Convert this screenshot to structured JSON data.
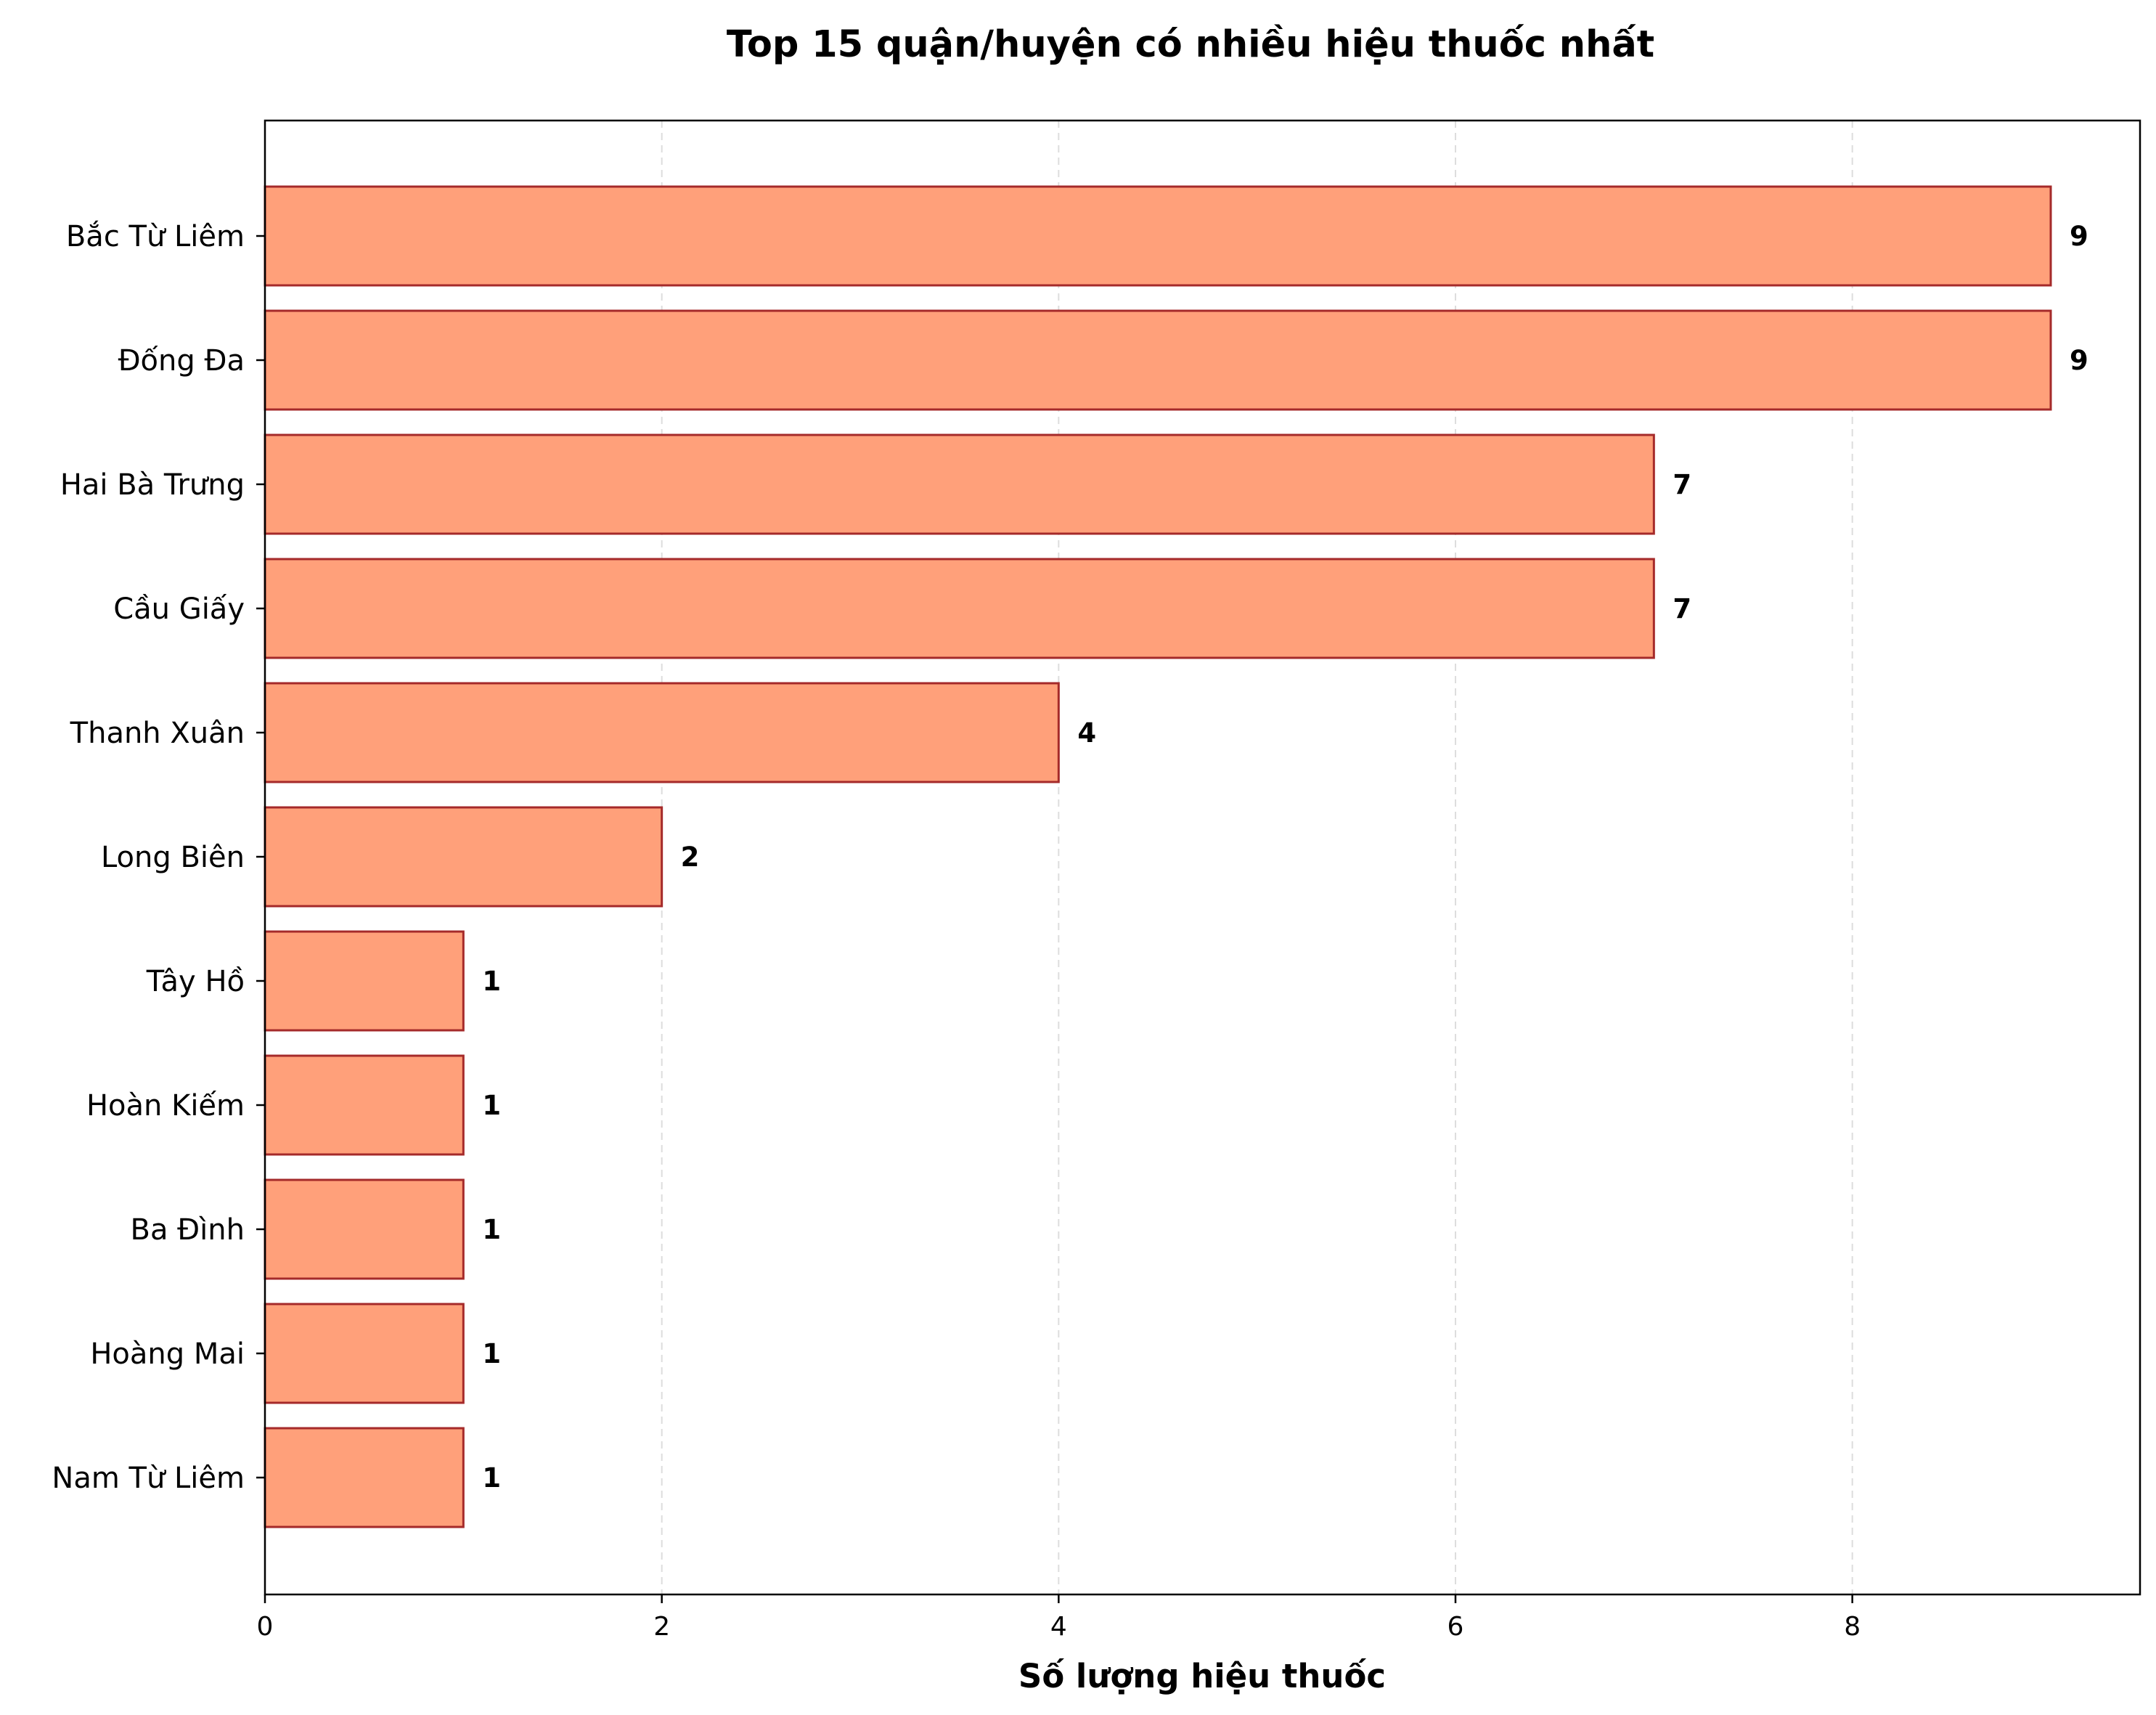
{
  "chart_data": {
    "type": "bar",
    "orientation": "horizontal",
    "title": "Top 15 quận/huyện có nhiều hiệu thuốc nhất",
    "xlabel": "Số lượng hiệu thuốc",
    "ylabel": "",
    "categories": [
      "Bắc Từ Liêm",
      "Đống Đa",
      "Hai Bà Trưng",
      "Cầu Giấy",
      "Thanh Xuân",
      "Long Biên",
      "Tây Hồ",
      "Hoàn Kiếm",
      "Ba Đình",
      "Hoàng Mai",
      "Nam Từ Liêm"
    ],
    "values": [
      9,
      9,
      7,
      7,
      4,
      2,
      1,
      1,
      1,
      1,
      1
    ],
    "value_labels": [
      "9",
      "9",
      "7",
      "7",
      "4",
      "2",
      "1",
      "1",
      "1",
      "1",
      "1"
    ],
    "xlim": [
      0,
      9.45
    ],
    "xticks": [
      0,
      2,
      4,
      6,
      8
    ],
    "xtick_labels": [
      "0",
      "2",
      "4",
      "6",
      "8"
    ],
    "grid": "x dashed",
    "colors": {
      "bar_fill": "#ffa07a",
      "bar_edge": "#a52a2a",
      "grid": "#dddddd"
    }
  }
}
